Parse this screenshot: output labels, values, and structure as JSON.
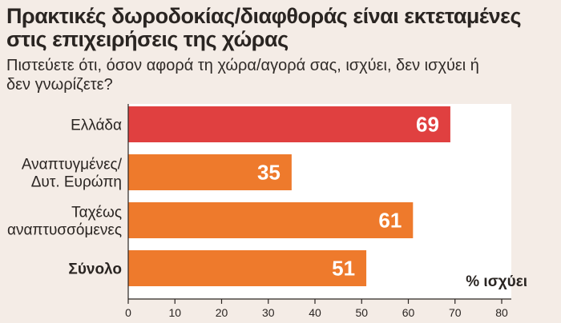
{
  "chart_data": {
    "type": "bar",
    "orientation": "horizontal",
    "title": "Πρακτικές δωροδοκίας/διαφθοράς είναι εκτεταμένες στις επιχειρήσεις της χώρας",
    "subtitle": "Πιστεύετε ότι, όσον αφορά τη χώρα/αγορά σας, ισχύει, δεν ισχύει ή δεν γνωρίζετε?",
    "categories": [
      [
        "Ελλάδα"
      ],
      [
        "Αναπτυγμένες/",
        "Δυτ. Ευρώπη"
      ],
      [
        "Ταχέως",
        "αναπτυσσόμενες"
      ],
      [
        "Σύνολο"
      ]
    ],
    "values": [
      69,
      35,
      61,
      51
    ],
    "value_labels": [
      "69",
      "35",
      "61",
      "51"
    ],
    "bar_colors": [
      "#e04040",
      "#ee7a2c",
      "#ee7a2c",
      "#ee7a2c"
    ],
    "bold_category_index": 3,
    "xlim": [
      0,
      80
    ],
    "xticks": [
      "0",
      "10",
      "20",
      "30",
      "40",
      "50",
      "60",
      "70",
      "80"
    ],
    "unit_label": "% ισχύει",
    "plot_background": "#ffffff"
  }
}
